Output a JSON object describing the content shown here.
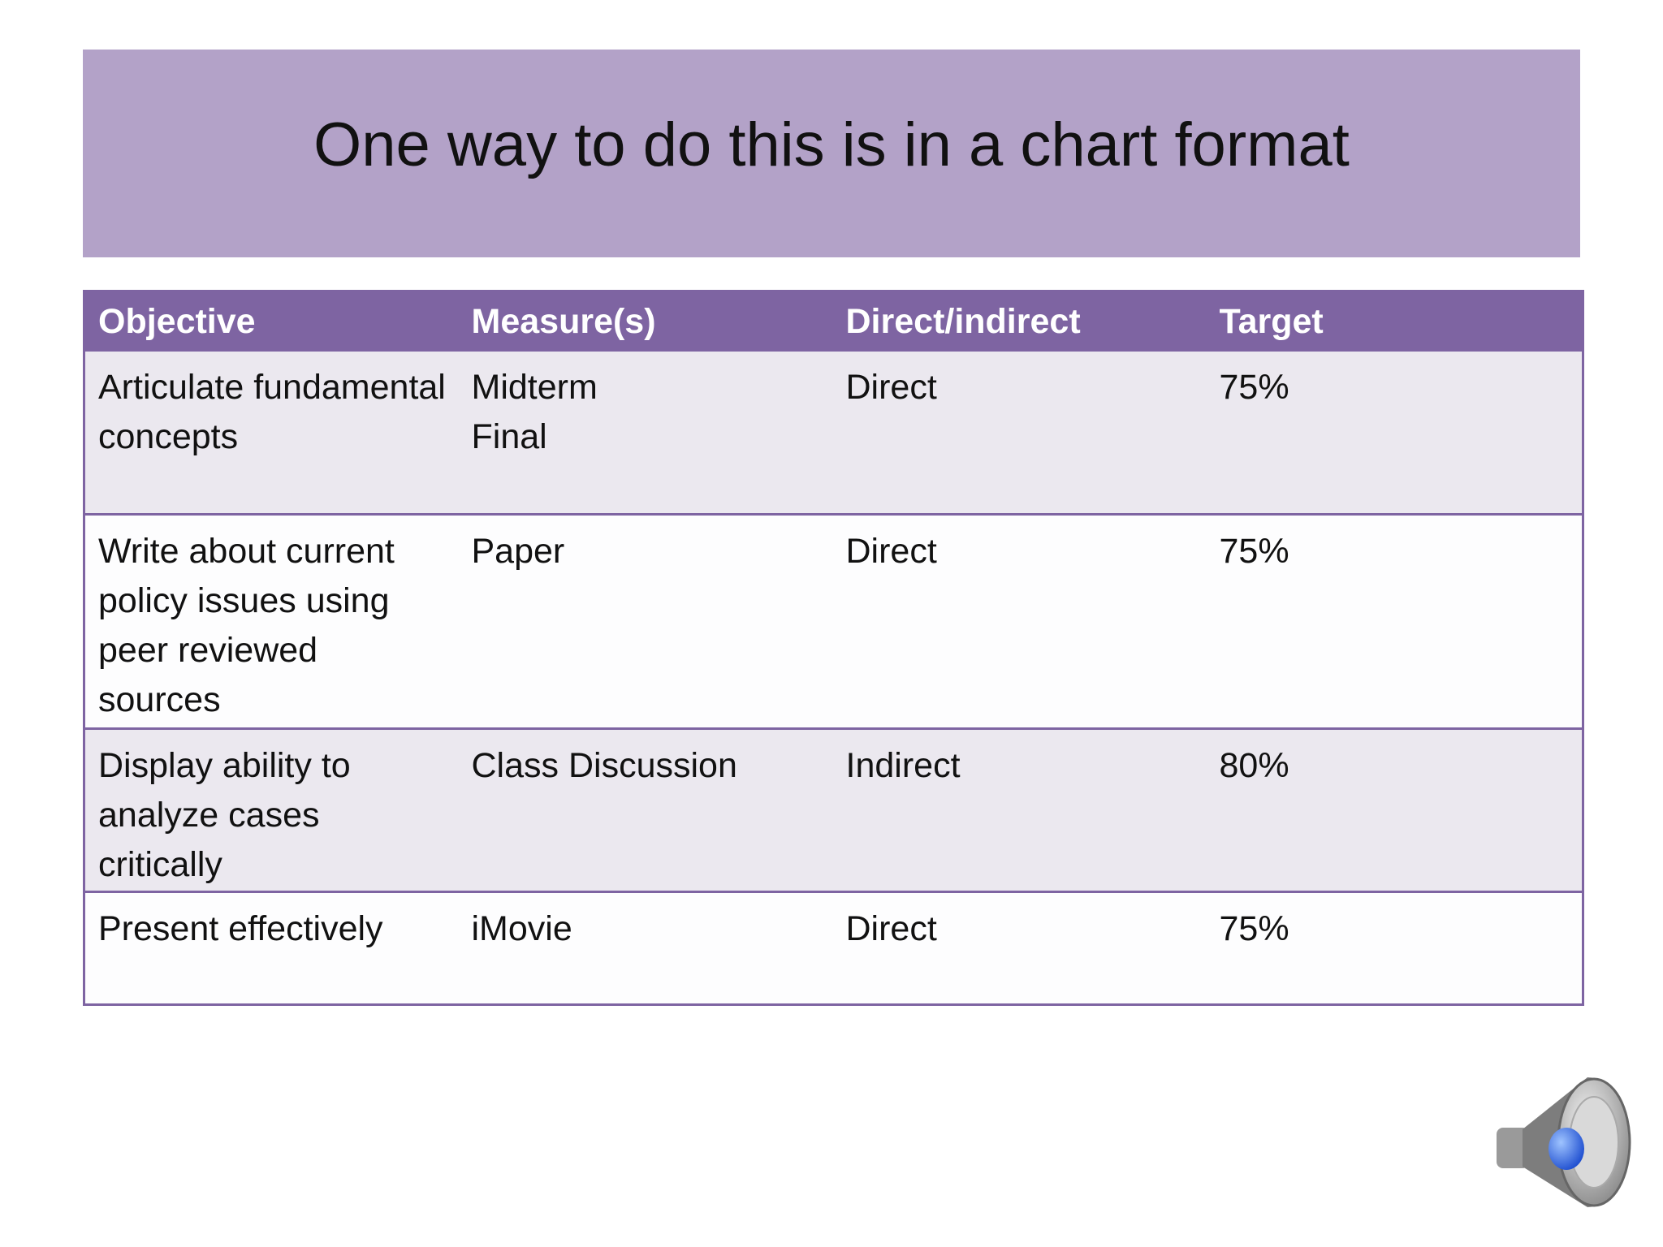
{
  "header": {
    "title": "One way to do this is in a chart format"
  },
  "table": {
    "columns": [
      "Objective",
      "Measure(s)",
      "Direct/indirect",
      "Target"
    ],
    "rows": [
      [
        "Articulate fundamental concepts",
        "Midterm\nFinal",
        "Direct",
        "75%"
      ],
      [
        "Write about current policy issues using peer reviewed sources",
        "Paper",
        "Direct",
        "75%"
      ],
      [
        "Display ability to analyze cases critically",
        "Class Discussion",
        "Indirect",
        "80%"
      ],
      [
        "Present effectively",
        "iMovie",
        "Direct",
        "75%"
      ]
    ]
  }
}
